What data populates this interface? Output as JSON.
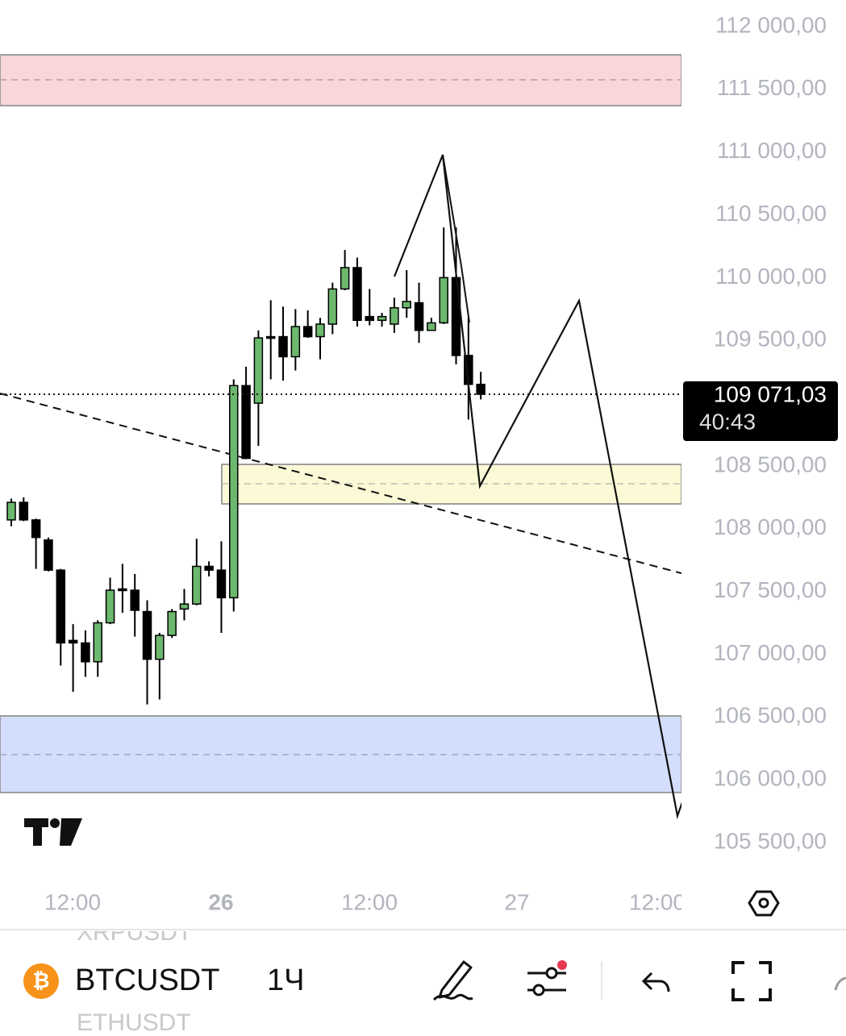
{
  "chart_data": {
    "type": "candlestick",
    "open": [
      108070,
      108210,
      108070,
      107910,
      107670,
      107110,
      107090,
      106940,
      107250,
      107520,
      107510,
      107340,
      106960,
      107150,
      107360,
      107400,
      107700,
      107670,
      107450,
      109140,
      109000,
      109530,
      109530,
      109370,
      109610,
      109530,
      109630,
      109910,
      110080,
      109690,
      109660,
      109630,
      109760,
      109800,
      109580,
      109640,
      110000,
      109380,
      109150
    ],
    "high": [
      108240,
      108250,
      108080,
      107930,
      107680,
      107240,
      107190,
      107270,
      107610,
      107720,
      107640,
      107430,
      107170,
      107360,
      107520,
      107920,
      107740,
      107900,
      109190,
      109290,
      109580,
      109820,
      109770,
      109750,
      109740,
      109680,
      109960,
      110220,
      110160,
      109910,
      109720,
      109840,
      110060,
      109960,
      109680,
      110400,
      110400,
      109680,
      109250
    ],
    "low": [
      108020,
      108060,
      107680,
      107660,
      106910,
      106700,
      106820,
      106820,
      107240,
      107330,
      107140,
      106600,
      106640,
      107130,
      107270,
      107390,
      107620,
      107170,
      107340,
      108560,
      108660,
      109190,
      109180,
      109260,
      109520,
      109350,
      109550,
      109900,
      109610,
      109620,
      109610,
      109560,
      109680,
      109480,
      109580,
      109630,
      109310,
      108870,
      109030
    ],
    "close": [
      108210,
      108070,
      107930,
      107670,
      107090,
      107090,
      106940,
      107250,
      107510,
      107510,
      107350,
      106960,
      107150,
      107340,
      107400,
      107700,
      107670,
      107450,
      109140,
      108560,
      109520,
      109520,
      109370,
      109610,
      109530,
      109630,
      109910,
      110080,
      109660,
      109660,
      109690,
      109760,
      109810,
      109580,
      109640,
      110000,
      109380,
      109150,
      109071.03
    ],
    "up_color": "#6cb86e",
    "down_color": "#000000",
    "ylim": [
      105211,
      112212
    ],
    "yticks": [
      {
        "value": 112000,
        "label": "112 000,00"
      },
      {
        "value": 111500,
        "label": "111 500,00"
      },
      {
        "value": 111000,
        "label": "111 000,00"
      },
      {
        "value": 110500,
        "label": "110 500,00"
      },
      {
        "value": 110000,
        "label": "110 000,00"
      },
      {
        "value": 109500,
        "label": "109 500,00"
      },
      {
        "value": 108500,
        "label": "108 500,00"
      },
      {
        "value": 108000,
        "label": "108 000,00"
      },
      {
        "value": 107500,
        "label": "107 500,00"
      },
      {
        "value": 107000,
        "label": "107 000,00"
      },
      {
        "value": 106500,
        "label": "106 500,00"
      },
      {
        "value": 106000,
        "label": "106 000,00"
      },
      {
        "value": 105500,
        "label": "105 500,00"
      }
    ],
    "xtick_labels": [
      "12:00",
      "26",
      "12:00",
      "27",
      "12:00"
    ],
    "last_price": {
      "value": 109071.03,
      "label": "109 071,03"
    },
    "countdown": "40:43"
  },
  "toolbar": {
    "symbol": "BTCUSDT",
    "interval": "1Ч",
    "symbol_list": [
      "XRPUSDT",
      "ETHUSDT"
    ]
  }
}
